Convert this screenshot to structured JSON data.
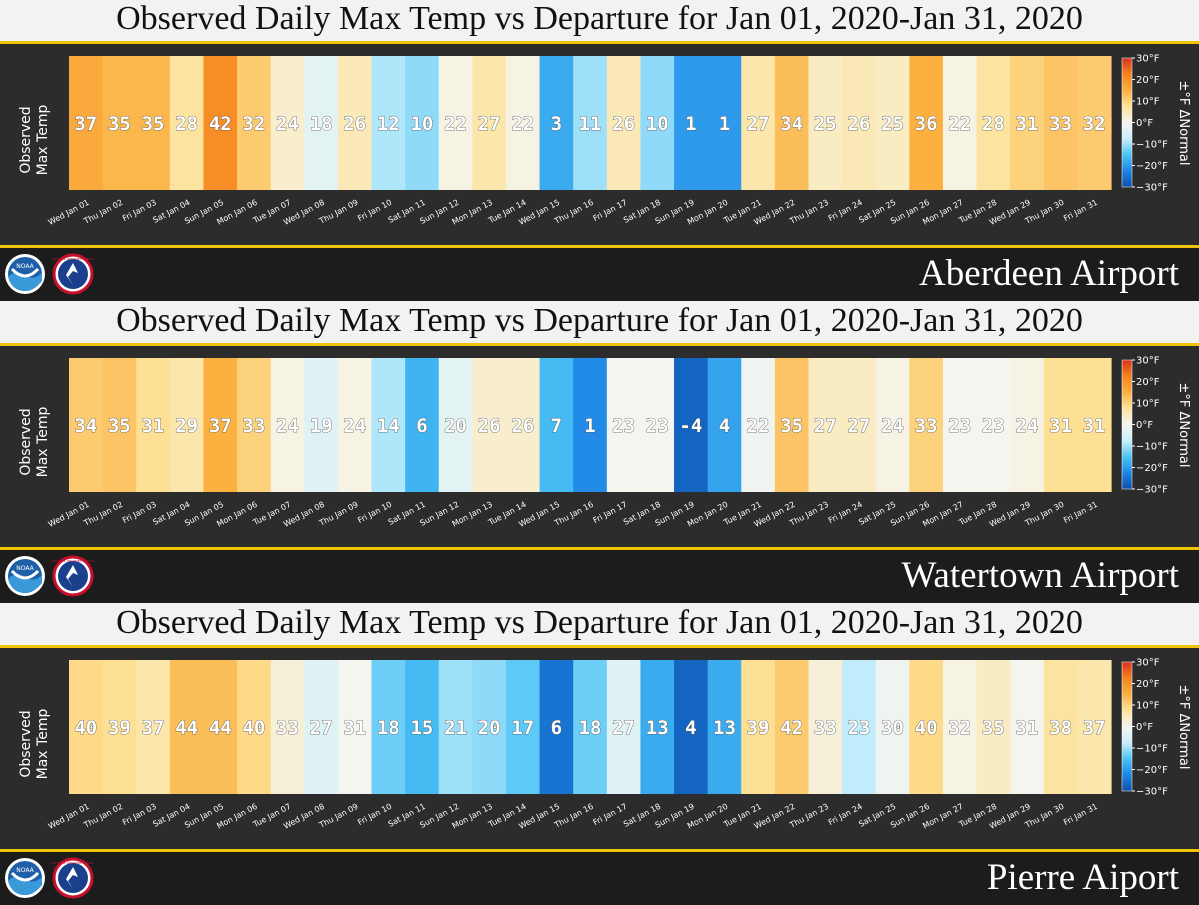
{
  "title": "Observed Daily Max Temp vs Departure for Jan 01, 2020-Jan 31, 2020",
  "ylabel_line1": "Observed",
  "ylabel_line2": "Max Temp",
  "colorbar": {
    "title": "±°F ΔNormal",
    "ticks": [
      "30°F",
      "20°F",
      "10°F",
      "0°F",
      "−10°F",
      "−20°F",
      "−30°F"
    ],
    "colors_top_to_bottom": [
      "#d7301f",
      "#f5841f",
      "#fbb040",
      "#fde39a",
      "#f5f5f0",
      "#c9effb",
      "#4cc3f5",
      "#1f86e6",
      "#0b4fa8"
    ]
  },
  "logos": {
    "noaa": "NOAA",
    "nws": "NATIONAL WEATHER SERVICE"
  },
  "chart_data": [
    {
      "type": "heatmap",
      "station": "Aberdeen Airport",
      "title": "Observed Daily Max Temp vs Departure for Jan 01, 2020-Jan 31, 2020",
      "categories": [
        "Wed Jan 01",
        "Thu Jan 02",
        "Fri Jan 03",
        "Sat Jan 04",
        "Sun Jan 05",
        "Mon Jan 06",
        "Tue Jan 07",
        "Wed Jan 08",
        "Thu Jan 09",
        "Fri Jan 10",
        "Sat Jan 11",
        "Sun Jan 12",
        "Mon Jan 13",
        "Tue Jan 14",
        "Wed Jan 15",
        "Thu Jan 16",
        "Fri Jan 17",
        "Sat Jan 18",
        "Sun Jan 19",
        "Mon Jan 20",
        "Tue Jan 21",
        "Wed Jan 22",
        "Thu Jan 23",
        "Fri Jan 24",
        "Sat Jan 25",
        "Sun Jan 26",
        "Mon Jan 27",
        "Tue Jan 28",
        "Wed Jan 29",
        "Thu Jan 30",
        "Fri Jan 31"
      ],
      "values": [
        37,
        35,
        35,
        28,
        42,
        32,
        24,
        18,
        26,
        12,
        10,
        22,
        27,
        22,
        3,
        11,
        26,
        10,
        1,
        1,
        27,
        34,
        25,
        26,
        25,
        36,
        22,
        28,
        31,
        33,
        32
      ],
      "departures": [
        16,
        14,
        14,
        7,
        21,
        11,
        3,
        -3,
        5,
        -9,
        -11,
        1,
        6,
        1,
        -18,
        -10,
        5,
        -11,
        -20,
        -20,
        6,
        13,
        4,
        5,
        4,
        15,
        1,
        7,
        10,
        12,
        11
      ],
      "colorbar_range": [
        -30,
        30
      ]
    },
    {
      "type": "heatmap",
      "station": "Watertown Airport",
      "title": "Observed Daily Max Temp vs Departure for Jan 01, 2020-Jan 31, 2020",
      "categories": [
        "Wed Jan 01",
        "Thu Jan 02",
        "Fri Jan 03",
        "Sat Jan 04",
        "Sun Jan 05",
        "Mon Jan 06",
        "Tue Jan 07",
        "Wed Jan 08",
        "Thu Jan 09",
        "Fri Jan 10",
        "Sat Jan 11",
        "Sun Jan 12",
        "Mon Jan 13",
        "Tue Jan 14",
        "Wed Jan 15",
        "Thu Jan 16",
        "Fri Jan 17",
        "Sat Jan 18",
        "Sun Jan 19",
        "Mon Jan 20",
        "Tue Jan 21",
        "Wed Jan 22",
        "Thu Jan 23",
        "Fri Jan 24",
        "Sat Jan 25",
        "Sun Jan 26",
        "Mon Jan 27",
        "Tue Jan 28",
        "Wed Jan 29",
        "Thu Jan 30",
        "Fri Jan 31"
      ],
      "values": [
        34,
        35,
        31,
        29,
        37,
        33,
        24,
        19,
        24,
        14,
        6,
        20,
        26,
        26,
        7,
        1,
        23,
        23,
        -4,
        4,
        22,
        35,
        27,
        27,
        24,
        33,
        23,
        23,
        24,
        31,
        31
      ],
      "departures": [
        11,
        12,
        8,
        6,
        15,
        10,
        1,
        -4,
        1,
        -9,
        -17,
        -3,
        3,
        3,
        -16,
        -22,
        0,
        0,
        -27,
        -19,
        -1,
        12,
        4,
        4,
        1,
        10,
        0,
        0,
        1,
        8,
        8
      ],
      "colorbar_range": [
        -30,
        30
      ]
    },
    {
      "type": "heatmap",
      "station": "Pierre Aiport",
      "title": "Observed Daily Max Temp vs Departure for Jan 01, 2020-Jan 31, 2020",
      "categories": [
        "Wed Jan 01",
        "Thu Jan 02",
        "Fri Jan 03",
        "Sat Jan 04",
        "Sun Jan 05",
        "Mon Jan 06",
        "Tue Jan 07",
        "Wed Jan 08",
        "Thu Jan 09",
        "Fri Jan 10",
        "Sat Jan 11",
        "Sun Jan 12",
        "Mon Jan 13",
        "Tue Jan 14",
        "Wed Jan 15",
        "Thu Jan 16",
        "Fri Jan 17",
        "Sat Jan 18",
        "Sun Jan 19",
        "Mon Jan 20",
        "Tue Jan 21",
        "Wed Jan 22",
        "Thu Jan 23",
        "Fri Jan 24",
        "Sat Jan 25",
        "Sun Jan 26",
        "Mon Jan 27",
        "Tue Jan 28",
        "Wed Jan 29",
        "Thu Jan 30",
        "Fri Jan 31"
      ],
      "values": [
        40,
        39,
        37,
        44,
        44,
        40,
        33,
        27,
        31,
        18,
        15,
        21,
        20,
        17,
        6,
        18,
        27,
        13,
        4,
        13,
        39,
        42,
        33,
        23,
        30,
        40,
        32,
        35,
        31,
        38,
        37
      ],
      "departures": [
        9,
        8,
        6,
        13,
        13,
        9,
        2,
        -4,
        0,
        -13,
        -16,
        -10,
        -11,
        -14,
        -25,
        -13,
        -4,
        -18,
        -27,
        -18,
        8,
        11,
        2,
        -8,
        -1,
        9,
        1,
        4,
        0,
        7,
        6
      ],
      "colorbar_range": [
        -30,
        30
      ]
    }
  ]
}
